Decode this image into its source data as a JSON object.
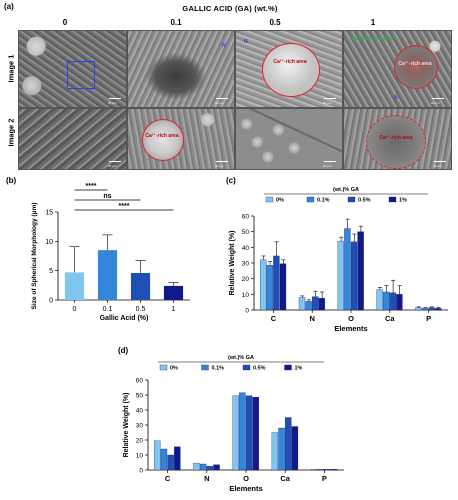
{
  "panel_a": {
    "letter": "(a)",
    "title": "GALLIC ACID (GA) (wt.%)",
    "columns": [
      "0",
      "0.1",
      "0.5",
      "1"
    ],
    "rows": [
      "Image 1",
      "Image 2"
    ],
    "scale_label": "20 μm",
    "annotations": {
      "ca_rich": "Ca²⁺-rich area",
      "nitrogen_rich": "Nitrogen-rich area",
      "marker": "N"
    },
    "colors": {
      "ca_outline": "#e32323",
      "zoom_box": "#2b3df0",
      "nitrogen": "#22b34a"
    }
  },
  "panel_b": {
    "letter": "(b)",
    "chart_data": {
      "type": "bar",
      "categories": [
        "0",
        "0.1",
        "0.5",
        "1"
      ],
      "values": [
        4.7,
        8.5,
        4.6,
        2.4
      ],
      "errors": [
        4.4,
        2.6,
        2.1,
        0.6
      ],
      "xlabel": "Gallic Acid (%)",
      "ylabel": "Size of Spherical Morphology (μm)",
      "ylim": [
        0,
        15
      ],
      "yticks": [
        0,
        5,
        10,
        15
      ],
      "colors": [
        "#7fc6f0",
        "#3487d8",
        "#1d4fb5",
        "#101a8a"
      ],
      "significance": [
        {
          "from": "0",
          "to": "0.1",
          "label": "****"
        },
        {
          "from": "0",
          "to": "0.5",
          "label": "ns"
        },
        {
          "from": "0",
          "to": "1",
          "label": "****"
        }
      ]
    }
  },
  "panel_c": {
    "letter": "(c)",
    "chart_data": {
      "type": "bar",
      "legend_title": "(wt.)% GA",
      "categories": [
        "C",
        "N",
        "O",
        "Ca",
        "P"
      ],
      "series": [
        {
          "name": "0%",
          "values": [
            32,
            8,
            44,
            13,
            1.5
          ],
          "errors": [
            2.5,
            1,
            2.5,
            1.5,
            0.5
          ]
        },
        {
          "name": "0.1%",
          "values": [
            28.5,
            5.5,
            52,
            11.5,
            1
          ],
          "errors": [
            2.5,
            1,
            6,
            4,
            0.5
          ]
        },
        {
          "name": "0.5%",
          "values": [
            34.5,
            8.5,
            43.5,
            11,
            1.5
          ],
          "errors": [
            9,
            3.5,
            5,
            8,
            0.5
          ]
        },
        {
          "name": "1%",
          "values": [
            29.5,
            7.5,
            50,
            10,
            1
          ],
          "errors": [
            2.5,
            4,
            3.5,
            5.5,
            0.5
          ]
        }
      ],
      "xlabel": "Elements",
      "ylabel": "Relative Weight (%)",
      "ylim": [
        0,
        60
      ],
      "yticks": [
        0,
        10,
        20,
        30,
        40,
        50,
        60
      ],
      "colors": [
        "#7fc6f0",
        "#3487d8",
        "#1d4fb5",
        "#101a8a"
      ],
      "legend_placement": "top"
    }
  },
  "panel_d": {
    "letter": "(d)",
    "chart_data": {
      "type": "bar",
      "legend_title": "(wt.)% GA",
      "categories": [
        "C",
        "N",
        "O",
        "Ca",
        "P"
      ],
      "series": [
        {
          "name": "0%",
          "values": [
            19.5,
            4.5,
            49.5,
            25,
            0.5
          ]
        },
        {
          "name": "0.1%",
          "values": [
            14,
            4,
            51.5,
            28,
            0.5
          ]
        },
        {
          "name": "0.5%",
          "values": [
            10,
            2.5,
            49.5,
            35,
            0.5
          ]
        },
        {
          "name": "1%",
          "values": [
            15.5,
            3.5,
            48.5,
            29,
            0.5
          ]
        }
      ],
      "xlabel": "Elements",
      "ylabel": "Relative Weight (%)",
      "ylim": [
        0,
        60
      ],
      "yticks": [
        0,
        10,
        20,
        30,
        40,
        50,
        60
      ],
      "colors": [
        "#7fc6f0",
        "#3487d8",
        "#1d4fb5",
        "#101a8a"
      ],
      "legend_placement": "top"
    }
  }
}
